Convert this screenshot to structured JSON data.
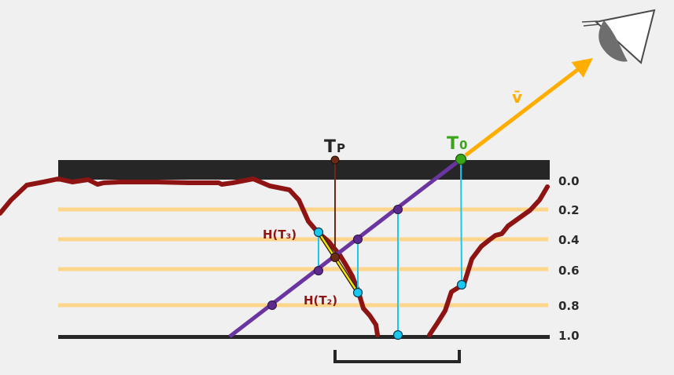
{
  "labels": {
    "tp_main": "T",
    "tp_sub": "P",
    "t0_main": "T",
    "t0_sub": "0",
    "v": "v̄",
    "h3": "H(T₃)",
    "h2": "H(T₂)"
  },
  "depth_levels": [
    "0.0",
    "0.2",
    "0.4",
    "0.6",
    "0.8",
    "1.0"
  ],
  "colors": {
    "background": "#f0f0f0",
    "surface_band": "#262626",
    "depth_line": "#fdd58b",
    "heightfield": "#8e1414",
    "view_ray": "#6a35a0",
    "view_vector": "#ffae00",
    "t0_point": "#3aa51b",
    "tp_line": "#6b2a16",
    "sample_point_purple": "#5b2a8e",
    "sample_point_cyan": "#18c8f0",
    "tangent_segment": "#f5e400",
    "label_red": "#8e1414",
    "label_green": "#3aa51b",
    "label_dark": "#262626",
    "level_text": "#2b2b2b"
  },
  "icons": {
    "eye": "eye-icon"
  }
}
